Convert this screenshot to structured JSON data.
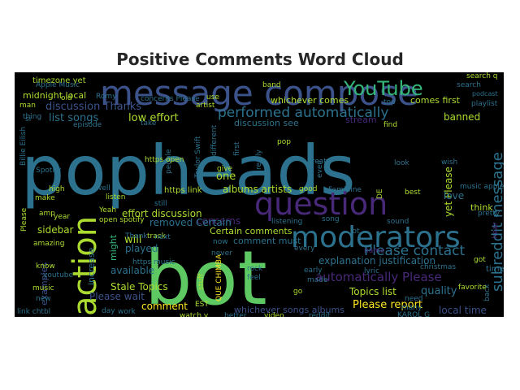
{
  "title": "Positive Comments Word Cloud",
  "palette": {
    "navy": "#3b528b",
    "purple": "#482878",
    "teal": "#2c728e",
    "green": "#5ec962",
    "lightgreen": "#addc30",
    "yellow": "#fde725",
    "seafoam": "#35b779",
    "aqua": "#21918c"
  },
  "words": [
    {
      "text": "popheads",
      "color": "teal"
    },
    {
      "text": "bot",
      "color": "green"
    },
    {
      "text": "message compose",
      "color": "navy"
    },
    {
      "text": "question",
      "color": "purple"
    },
    {
      "text": "moderators",
      "color": "teal"
    },
    {
      "text": "action",
      "color": "lightgreen"
    },
    {
      "text": "subreddit message",
      "color": "teal"
    },
    {
      "text": "performed automatically",
      "color": "teal"
    },
    {
      "text": "Please contact",
      "color": "teal"
    },
    {
      "text": "automatically Please",
      "color": "purple"
    },
    {
      "text": "timezone yet",
      "color": "lightgreen"
    },
    {
      "text": "YouTube",
      "color": "seafoam"
    },
    {
      "text": "midnight local",
      "color": "lightgreen"
    },
    {
      "text": "list songs",
      "color": "teal"
    },
    {
      "text": "discussion Thanks",
      "color": "navy"
    },
    {
      "text": "low effort",
      "color": "lightgreen"
    },
    {
      "text": "whichever comes",
      "color": "lightgreen"
    },
    {
      "text": "comes first",
      "color": "lightgreen"
    },
    {
      "text": "banned",
      "color": "lightgreen"
    },
    {
      "text": "discussion see",
      "color": "teal"
    },
    {
      "text": "stream",
      "color": "purple"
    },
    {
      "text": "concerns",
      "color": "purple"
    },
    {
      "text": "albums artists",
      "color": "lightgreen"
    },
    {
      "text": "effort discussion",
      "color": "lightgreen"
    },
    {
      "text": "removed Certain",
      "color": "teal"
    },
    {
      "text": "Certain comments",
      "color": "lightgreen"
    },
    {
      "text": "comment must",
      "color": "teal"
    },
    {
      "text": "explanation justification",
      "color": "teal"
    },
    {
      "text": "Topics list",
      "color": "lightgreen"
    },
    {
      "text": "quality",
      "color": "teal"
    },
    {
      "text": "Please report",
      "color": "yellow"
    },
    {
      "text": "Stale Topics",
      "color": "lightgreen"
    },
    {
      "text": "Please wait",
      "color": "navy"
    },
    {
      "text": "comment",
      "color": "yellow"
    },
    {
      "text": "whichever songs albums",
      "color": "navy"
    },
    {
      "text": "local time",
      "color": "navy"
    },
    {
      "text": "sidebar",
      "color": "lightgreen"
    },
    {
      "text": "examples",
      "color": "navy"
    },
    {
      "text": "increase",
      "color": "teal"
    },
    {
      "text": "might",
      "color": "seafoam"
    },
    {
      "text": "will",
      "color": "lightgreen"
    },
    {
      "text": "played",
      "color": "teal"
    },
    {
      "text": "available",
      "color": "teal"
    },
    {
      "text": "https link",
      "color": "lightgreen"
    },
    {
      "text": "https music",
      "color": "teal"
    },
    {
      "text": "one",
      "color": "lightgreen"
    },
    {
      "text": "listening",
      "color": "teal"
    },
    {
      "text": "song",
      "color": "teal"
    },
    {
      "text": "yet Please",
      "color": "lightgreen"
    },
    {
      "text": "love",
      "color": "teal"
    },
    {
      "text": "think",
      "color": "lightgreen"
    },
    {
      "text": "sound",
      "color": "teal"
    },
    {
      "text": "time",
      "color": "teal"
    },
    {
      "text": "back",
      "color": "teal"
    },
    {
      "text": "christmas",
      "color": "teal"
    },
    {
      "text": "lyric",
      "color": "teal"
    },
    {
      "text": "name",
      "color": "purple"
    },
    {
      "text": "rock",
      "color": "teal"
    },
    {
      "text": "feel",
      "color": "teal"
    },
    {
      "text": "early",
      "color": "teal"
    },
    {
      "text": "made",
      "color": "teal"
    },
    {
      "text": "go",
      "color": "lightgreen"
    },
    {
      "text": "best",
      "color": "lightgreen"
    },
    {
      "text": "good",
      "color": "lightgreen"
    },
    {
      "text": "even",
      "color": "teal"
    },
    {
      "text": "pop",
      "color": "lightgreen"
    },
    {
      "text": "really",
      "color": "teal"
    },
    {
      "text": "people",
      "color": "teal"
    },
    {
      "text": "Taylor Swift",
      "color": "teal"
    },
    {
      "text": "Billie Eilish",
      "color": "teal"
    },
    {
      "text": "Apple Music",
      "color": "teal"
    },
    {
      "text": "band",
      "color": "lightgreen"
    },
    {
      "text": "search",
      "color": "teal"
    },
    {
      "text": "playlist",
      "color": "teal"
    },
    {
      "text": "artist",
      "color": "lightgreen"
    },
    {
      "text": "top",
      "color": "teal"
    },
    {
      "text": "find",
      "color": "lightgreen"
    },
    {
      "text": "look",
      "color": "teal"
    },
    {
      "text": "wish",
      "color": "teal"
    },
    {
      "text": "music apple",
      "color": "teal"
    },
    {
      "text": "hear",
      "color": "purple"
    },
    {
      "text": "favorite",
      "color": "lightgreen"
    },
    {
      "text": "KAROL G",
      "color": "teal"
    },
    {
      "text": "link chtbl",
      "color": "teal"
    },
    {
      "text": "youtube",
      "color": "teal"
    },
    {
      "text": "music",
      "color": "lightgreen"
    },
    {
      "text": "new",
      "color": "teal"
    },
    {
      "text": "year",
      "color": "lightgreen"
    },
    {
      "text": "amazing",
      "color": "lightgreen"
    },
    {
      "text": "know",
      "color": "lightgreen"
    },
    {
      "text": "amp",
      "color": "lightgreen"
    },
    {
      "text": "make",
      "color": "lightgreen"
    },
    {
      "text": "high",
      "color": "lightgreen"
    },
    {
      "text": "well",
      "color": "teal"
    },
    {
      "text": "listen",
      "color": "lightgreen"
    },
    {
      "text": "Thank",
      "color": "teal"
    },
    {
      "text": "track",
      "color": "lightgreen"
    },
    {
      "text": "open spotify",
      "color": "lightgreen"
    },
    {
      "text": "still",
      "color": "teal"
    },
    {
      "text": "next",
      "color": "teal"
    },
    {
      "text": "day",
      "color": "teal"
    },
    {
      "text": "work",
      "color": "teal"
    },
    {
      "text": "watch v",
      "color": "lightgreen"
    },
    {
      "text": "better",
      "color": "teal"
    },
    {
      "text": "video",
      "color": "lightgreen"
    },
    {
      "text": "reddit",
      "color": "teal"
    },
    {
      "text": "EST",
      "color": "lightgreen"
    },
    {
      "text": "QUE CHIMBA",
      "color": "yellow"
    },
    {
      "text": "need",
      "color": "teal"
    },
    {
      "text": "many",
      "color": "teal"
    },
    {
      "text": "got",
      "color": "lightgreen"
    },
    {
      "text": "lot",
      "color": "teal"
    },
    {
      "text": "every",
      "color": "teal"
    },
    {
      "text": "never",
      "color": "teal"
    },
    {
      "text": "stuff",
      "color": "lightgreen"
    },
    {
      "text": "now",
      "color": "teal"
    },
    {
      "text": "give",
      "color": "lightgreen"
    },
    {
      "text": "first",
      "color": "teal"
    },
    {
      "text": "take",
      "color": "teal"
    },
    {
      "text": "man",
      "color": "lightgreen"
    },
    {
      "text": "si",
      "color": "teal"
    },
    {
      "text": "old",
      "color": "lightgreen"
    },
    {
      "text": "thing",
      "color": "teal"
    },
    {
      "text": "episode",
      "color": "teal"
    },
    {
      "text": "Romy",
      "color": "teal"
    },
    {
      "text": "use",
      "color": "lightgreen"
    },
    {
      "text": "search q",
      "color": "lightgreen"
    },
    {
      "text": "https open",
      "color": "lightgreen"
    },
    {
      "text": "different",
      "color": "teal"
    },
    {
      "text": "Spotify",
      "color": "teal"
    },
    {
      "text": "Please",
      "color": "lightgreen"
    },
    {
      "text": "Yeah",
      "color": "lightgreen"
    },
    {
      "text": "concerns Please",
      "color": "teal"
    },
    {
      "text": "Feminine",
      "color": "teal"
    },
    {
      "text": "DE",
      "color": "lightgreen"
    },
    {
      "text": "great",
      "color": "teal"
    },
    {
      "text": "podcast",
      "color": "teal"
    },
    {
      "text": "pretty",
      "color": "teal"
    }
  ]
}
